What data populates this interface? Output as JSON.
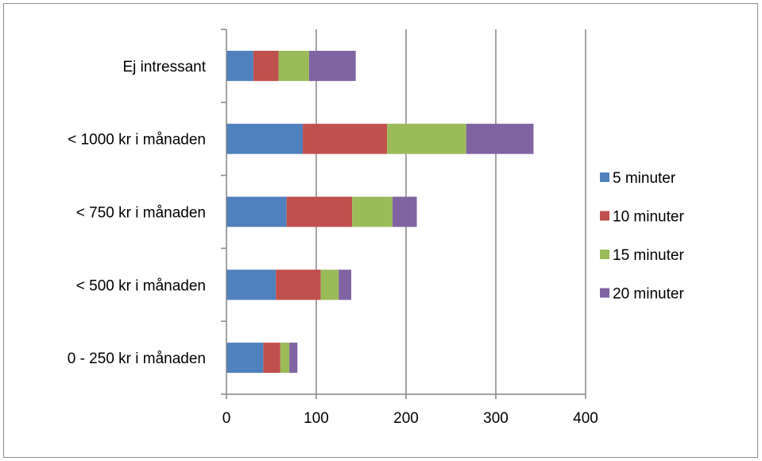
{
  "chart_data": {
    "type": "bar",
    "orientation": "horizontal",
    "stacked": true,
    "title": "",
    "xlabel": "",
    "ylabel": "",
    "categories": [
      "0 - 250 kr i månaden",
      "< 500 kr i månaden",
      "< 750 kr i månaden",
      "< 1000 kr i månaden",
      "Ej intressant"
    ],
    "series": [
      {
        "name": "5 minuter",
        "color": "#4F81BD",
        "values": [
          41,
          55,
          67,
          85,
          30
        ]
      },
      {
        "name": "10 minuter",
        "color": "#C0504D",
        "values": [
          19,
          50,
          73,
          94,
          28
        ]
      },
      {
        "name": "15 minuter",
        "color": "#9BBB59",
        "values": [
          10,
          20,
          45,
          88,
          34
        ]
      },
      {
        "name": "20 minuter",
        "color": "#8064A2",
        "values": [
          9,
          14,
          27,
          75,
          52
        ]
      }
    ],
    "xlim": [
      0,
      400
    ],
    "xticks": [
      "0",
      "100",
      "200",
      "300",
      "400"
    ],
    "grid": true,
    "legend_position": "right"
  }
}
